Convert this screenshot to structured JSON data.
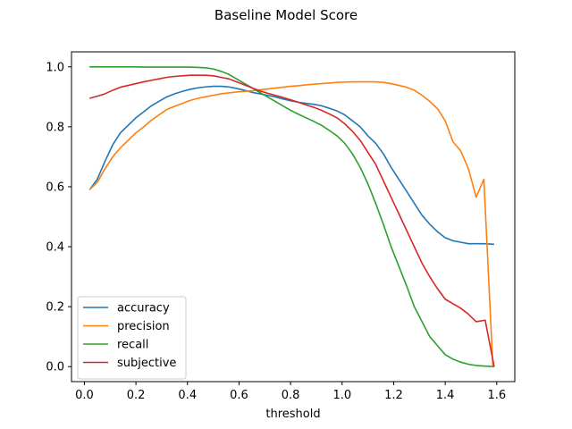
{
  "chart_data": {
    "type": "line",
    "title": "Baseline Model Score",
    "xlabel": "threshold",
    "ylabel": "",
    "xlim": [
      -0.05,
      1.67
    ],
    "ylim": [
      -0.05,
      1.05
    ],
    "xticks": [
      0.0,
      0.2,
      0.4,
      0.6,
      0.8,
      1.0,
      1.2,
      1.4,
      1.6
    ],
    "xtick_labels": [
      "0.0",
      "0.2",
      "0.4",
      "0.6",
      "0.8",
      "1.0",
      "1.2",
      "1.4",
      "1.6"
    ],
    "yticks": [
      0.0,
      0.2,
      0.4,
      0.6,
      0.8,
      1.0
    ],
    "ytick_labels": [
      "0.0",
      "0.2",
      "0.4",
      "0.6",
      "0.8",
      "1.0"
    ],
    "grid": false,
    "legend_position": "lower-left",
    "series": [
      {
        "name": "accuracy",
        "color": "#1f77b4",
        "x": [
          0.02,
          0.05,
          0.08,
          0.11,
          0.14,
          0.17,
          0.2,
          0.23,
          0.26,
          0.29,
          0.32,
          0.35,
          0.38,
          0.41,
          0.44,
          0.47,
          0.5,
          0.53,
          0.56,
          0.59,
          0.62,
          0.65,
          0.68,
          0.71,
          0.74,
          0.77,
          0.8,
          0.83,
          0.86,
          0.89,
          0.92,
          0.95,
          0.98,
          1.01,
          1.04,
          1.07,
          1.1,
          1.13,
          1.16,
          1.19,
          1.22,
          1.25,
          1.28,
          1.31,
          1.34,
          1.37,
          1.4,
          1.43,
          1.46,
          1.49,
          1.52,
          1.55,
          1.59
        ],
        "y": [
          0.59,
          0.625,
          0.685,
          0.74,
          0.78,
          0.805,
          0.83,
          0.85,
          0.87,
          0.885,
          0.9,
          0.91,
          0.918,
          0.925,
          0.93,
          0.933,
          0.935,
          0.935,
          0.933,
          0.928,
          0.922,
          0.915,
          0.91,
          0.905,
          0.9,
          0.893,
          0.887,
          0.882,
          0.878,
          0.875,
          0.87,
          0.862,
          0.853,
          0.84,
          0.82,
          0.8,
          0.77,
          0.745,
          0.71,
          0.665,
          0.625,
          0.585,
          0.545,
          0.505,
          0.475,
          0.45,
          0.43,
          0.42,
          0.415,
          0.41,
          0.41,
          0.41,
          0.408
        ]
      },
      {
        "name": "precision",
        "color": "#ff7f0e",
        "x": [
          0.02,
          0.05,
          0.08,
          0.11,
          0.14,
          0.17,
          0.2,
          0.23,
          0.26,
          0.29,
          0.32,
          0.35,
          0.38,
          0.41,
          0.44,
          0.47,
          0.5,
          0.53,
          0.56,
          0.59,
          0.62,
          0.65,
          0.68,
          0.71,
          0.74,
          0.77,
          0.8,
          0.83,
          0.86,
          0.89,
          0.92,
          0.95,
          0.98,
          1.01,
          1.04,
          1.07,
          1.1,
          1.13,
          1.16,
          1.19,
          1.22,
          1.25,
          1.28,
          1.31,
          1.34,
          1.37,
          1.4,
          1.43,
          1.46,
          1.49,
          1.52,
          1.55,
          1.585
        ],
        "y": [
          0.59,
          0.615,
          0.66,
          0.7,
          0.73,
          0.755,
          0.78,
          0.8,
          0.822,
          0.84,
          0.858,
          0.868,
          0.878,
          0.888,
          0.895,
          0.9,
          0.905,
          0.91,
          0.913,
          0.916,
          0.918,
          0.92,
          0.923,
          0.926,
          0.929,
          0.932,
          0.935,
          0.937,
          0.94,
          0.942,
          0.944,
          0.946,
          0.948,
          0.949,
          0.95,
          0.95,
          0.95,
          0.95,
          0.948,
          0.944,
          0.938,
          0.932,
          0.922,
          0.905,
          0.885,
          0.86,
          0.82,
          0.75,
          0.72,
          0.66,
          0.565,
          0.625,
          0.0
        ]
      },
      {
        "name": "recall",
        "color": "#2ca02c",
        "x": [
          0.02,
          0.05,
          0.08,
          0.11,
          0.14,
          0.17,
          0.2,
          0.23,
          0.26,
          0.29,
          0.32,
          0.35,
          0.38,
          0.41,
          0.44,
          0.47,
          0.5,
          0.53,
          0.56,
          0.59,
          0.62,
          0.65,
          0.68,
          0.71,
          0.74,
          0.77,
          0.8,
          0.83,
          0.86,
          0.89,
          0.92,
          0.95,
          0.98,
          1.01,
          1.04,
          1.07,
          1.1,
          1.13,
          1.16,
          1.19,
          1.22,
          1.25,
          1.28,
          1.31,
          1.34,
          1.37,
          1.4,
          1.43,
          1.46,
          1.49,
          1.52,
          1.55,
          1.59
        ],
        "y": [
          1.0,
          1.0,
          1.0,
          1.0,
          1.0,
          1.0,
          1.0,
          0.999,
          0.999,
          0.999,
          0.999,
          0.999,
          0.999,
          0.999,
          0.998,
          0.997,
          0.993,
          0.985,
          0.975,
          0.96,
          0.945,
          0.93,
          0.915,
          0.9,
          0.885,
          0.87,
          0.855,
          0.842,
          0.83,
          0.818,
          0.805,
          0.788,
          0.77,
          0.745,
          0.71,
          0.665,
          0.61,
          0.545,
          0.475,
          0.4,
          0.335,
          0.27,
          0.2,
          0.15,
          0.1,
          0.07,
          0.04,
          0.025,
          0.015,
          0.008,
          0.004,
          0.002,
          0.0
        ]
      },
      {
        "name": "subjective",
        "color": "#d62728",
        "x": [
          0.02,
          0.05,
          0.08,
          0.11,
          0.14,
          0.17,
          0.2,
          0.23,
          0.26,
          0.29,
          0.32,
          0.35,
          0.38,
          0.41,
          0.44,
          0.47,
          0.5,
          0.53,
          0.56,
          0.59,
          0.62,
          0.65,
          0.68,
          0.71,
          0.74,
          0.77,
          0.8,
          0.83,
          0.86,
          0.89,
          0.92,
          0.95,
          0.98,
          1.01,
          1.04,
          1.07,
          1.1,
          1.13,
          1.16,
          1.19,
          1.22,
          1.25,
          1.28,
          1.31,
          1.34,
          1.37,
          1.4,
          1.43,
          1.46,
          1.49,
          1.52,
          1.555,
          1.59
        ],
        "y": [
          0.895,
          0.902,
          0.91,
          0.922,
          0.932,
          0.938,
          0.944,
          0.95,
          0.955,
          0.96,
          0.965,
          0.968,
          0.97,
          0.972,
          0.972,
          0.972,
          0.97,
          0.965,
          0.96,
          0.95,
          0.94,
          0.93,
          0.92,
          0.912,
          0.905,
          0.898,
          0.89,
          0.882,
          0.873,
          0.865,
          0.855,
          0.843,
          0.83,
          0.81,
          0.785,
          0.755,
          0.715,
          0.675,
          0.62,
          0.565,
          0.51,
          0.455,
          0.4,
          0.345,
          0.3,
          0.26,
          0.225,
          0.21,
          0.195,
          0.175,
          0.15,
          0.155,
          0.0
        ]
      }
    ]
  }
}
